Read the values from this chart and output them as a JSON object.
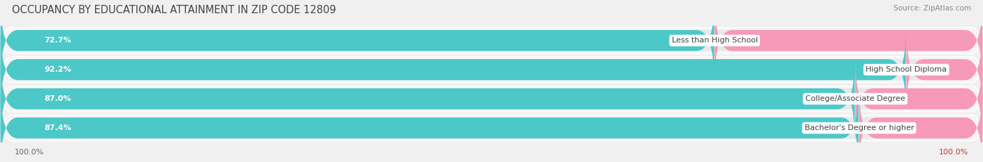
{
  "title": "OCCUPANCY BY EDUCATIONAL ATTAINMENT IN ZIP CODE 12809",
  "source": "Source: ZipAtlas.com",
  "categories": [
    "Less than High School",
    "High School Diploma",
    "College/Associate Degree",
    "Bachelor's Degree or higher"
  ],
  "owner_values": [
    72.7,
    92.2,
    87.0,
    87.4
  ],
  "renter_values": [
    27.3,
    7.8,
    13.0,
    12.6
  ],
  "owner_color": "#4dc8c8",
  "renter_color": "#f799b8",
  "bg_color": "#f0f0f0",
  "bar_bg_color": "#e8e8e8",
  "row_bg_color": "#f5f5f5",
  "title_fontsize": 10.5,
  "label_fontsize": 8,
  "value_fontsize": 8,
  "legend_fontsize": 8.5,
  "axis_label_fontsize": 8
}
